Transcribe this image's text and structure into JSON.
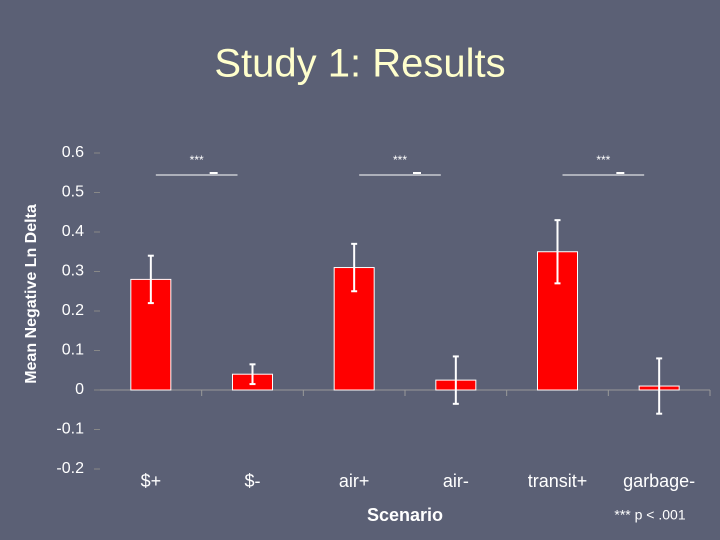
{
  "chart_data": {
    "type": "bar",
    "title": "Study 1: Results",
    "x_label": "Scenario",
    "y_label": "Mean Negative Ln Delta",
    "categories": [
      "$+",
      "$-",
      "air+",
      "air-",
      "transit+",
      "garbage-"
    ],
    "values": [
      0.28,
      0.04,
      0.31,
      0.025,
      0.35,
      0.01
    ],
    "errors": [
      0.06,
      0.025,
      0.06,
      0.06,
      0.08,
      0.07
    ],
    "color": "#ff0000",
    "ylim": [
      -0.2,
      0.6
    ],
    "yticks": [
      0.6,
      0.5,
      0.4,
      0.3,
      0.2,
      0.1,
      0,
      -0.1,
      -0.2
    ],
    "annotations": [
      "***",
      "***",
      "***"
    ],
    "note": "*** p < .001"
  }
}
